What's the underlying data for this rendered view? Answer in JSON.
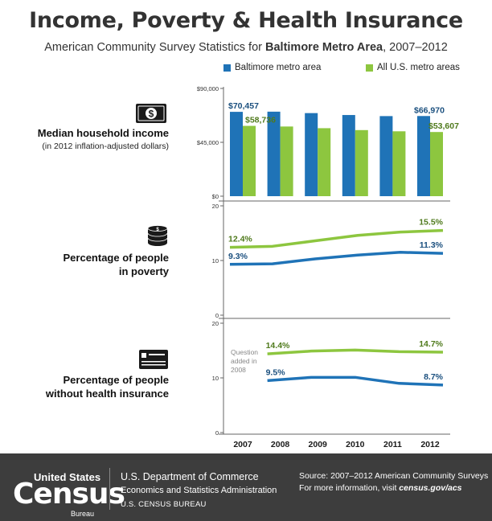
{
  "header": {
    "title": "Income, Poverty & Health Insurance",
    "subtitle_prefix": "American Community Survey Statistics for ",
    "subtitle_bold": "Baltimore Metro Area",
    "subtitle_suffix": ", 2007–2012"
  },
  "legend": {
    "baltimore": "Baltimore metro area",
    "us": "All U.S. metro areas"
  },
  "colors": {
    "baltimore": "#1f73b7",
    "us": "#8dc63f",
    "baltimore_label": "#1a4f7e",
    "us_label": "#4f7a1c",
    "axis": "#666666",
    "footer_bg": "#3d3d3d"
  },
  "sections": {
    "income": {
      "label": "Median household income",
      "sublabel": "(in 2012 inflation-adjusted dollars)",
      "icon": "dollar-bill-icon"
    },
    "poverty": {
      "label_line1": "Percentage of people",
      "label_line2": "in poverty",
      "icon": "coins-icon"
    },
    "insurance": {
      "label_line1": "Percentage of people",
      "label_line2": "without health insurance",
      "icon": "insurance-card-icon"
    }
  },
  "chart_data": [
    {
      "type": "bar",
      "id": "income",
      "categories": [
        "2007",
        "2008",
        "2009",
        "2010",
        "2011",
        "2012"
      ],
      "series": [
        {
          "name": "Baltimore metro area",
          "values": [
            70457,
            70600,
            69400,
            67800,
            66900,
            66970
          ]
        },
        {
          "name": "All U.S. metro areas",
          "values": [
            58736,
            58200,
            56800,
            55200,
            54200,
            53607
          ]
        }
      ],
      "ylim": [
        0,
        90000
      ],
      "yticks": [
        "$0",
        "$45,000",
        "$90,000"
      ],
      "data_labels": {
        "baltimore_first": "$70,457",
        "us_first": "$58,736",
        "baltimore_last": "$66,970",
        "us_last": "$53,607"
      }
    },
    {
      "type": "line",
      "id": "poverty",
      "x": [
        "2007",
        "2008",
        "2009",
        "2010",
        "2011",
        "2012"
      ],
      "series": [
        {
          "name": "All U.S. metro areas",
          "values": [
            12.4,
            12.6,
            13.6,
            14.6,
            15.2,
            15.5
          ]
        },
        {
          "name": "Baltimore metro area",
          "values": [
            9.3,
            9.4,
            10.3,
            11.0,
            11.5,
            11.3
          ]
        }
      ],
      "ylim": [
        0,
        20
      ],
      "yticks": [
        "0",
        "10",
        "20"
      ],
      "data_labels": {
        "us_first": "12.4%",
        "baltimore_first": "9.3%",
        "us_last": "15.5%",
        "baltimore_last": "11.3%"
      }
    },
    {
      "type": "line",
      "id": "insurance",
      "x": [
        "2008",
        "2009",
        "2010",
        "2011",
        "2012"
      ],
      "series": [
        {
          "name": "All U.S. metro areas",
          "values": [
            14.4,
            14.9,
            15.1,
            14.8,
            14.7
          ]
        },
        {
          "name": "Baltimore metro area",
          "values": [
            9.5,
            10.1,
            10.1,
            9.0,
            8.7
          ]
        }
      ],
      "ylim": [
        0,
        20
      ],
      "yticks": [
        "0",
        "10",
        "20"
      ],
      "data_labels": {
        "us_first": "14.4%",
        "baltimore_first": "9.5%",
        "us_last": "14.7%",
        "baltimore_last": "8.7%"
      },
      "annotation": [
        "Question",
        "added in",
        "2008"
      ]
    }
  ],
  "years": [
    "2007",
    "2008",
    "2009",
    "2010",
    "2011",
    "2012"
  ],
  "footer": {
    "logo_top": "United States",
    "logo_main": "Census",
    "logo_sub": "Bureau",
    "dept_line1": "U.S. Department of Commerce",
    "dept_line2": "Economics and Statistics Administration",
    "dept_line3": "U.S. CENSUS BUREAU",
    "source_line1": "Source: 2007–2012 American Community Surveys",
    "source_line2_prefix": "For more information, visit ",
    "source_line2_link": "census.gov/acs"
  }
}
